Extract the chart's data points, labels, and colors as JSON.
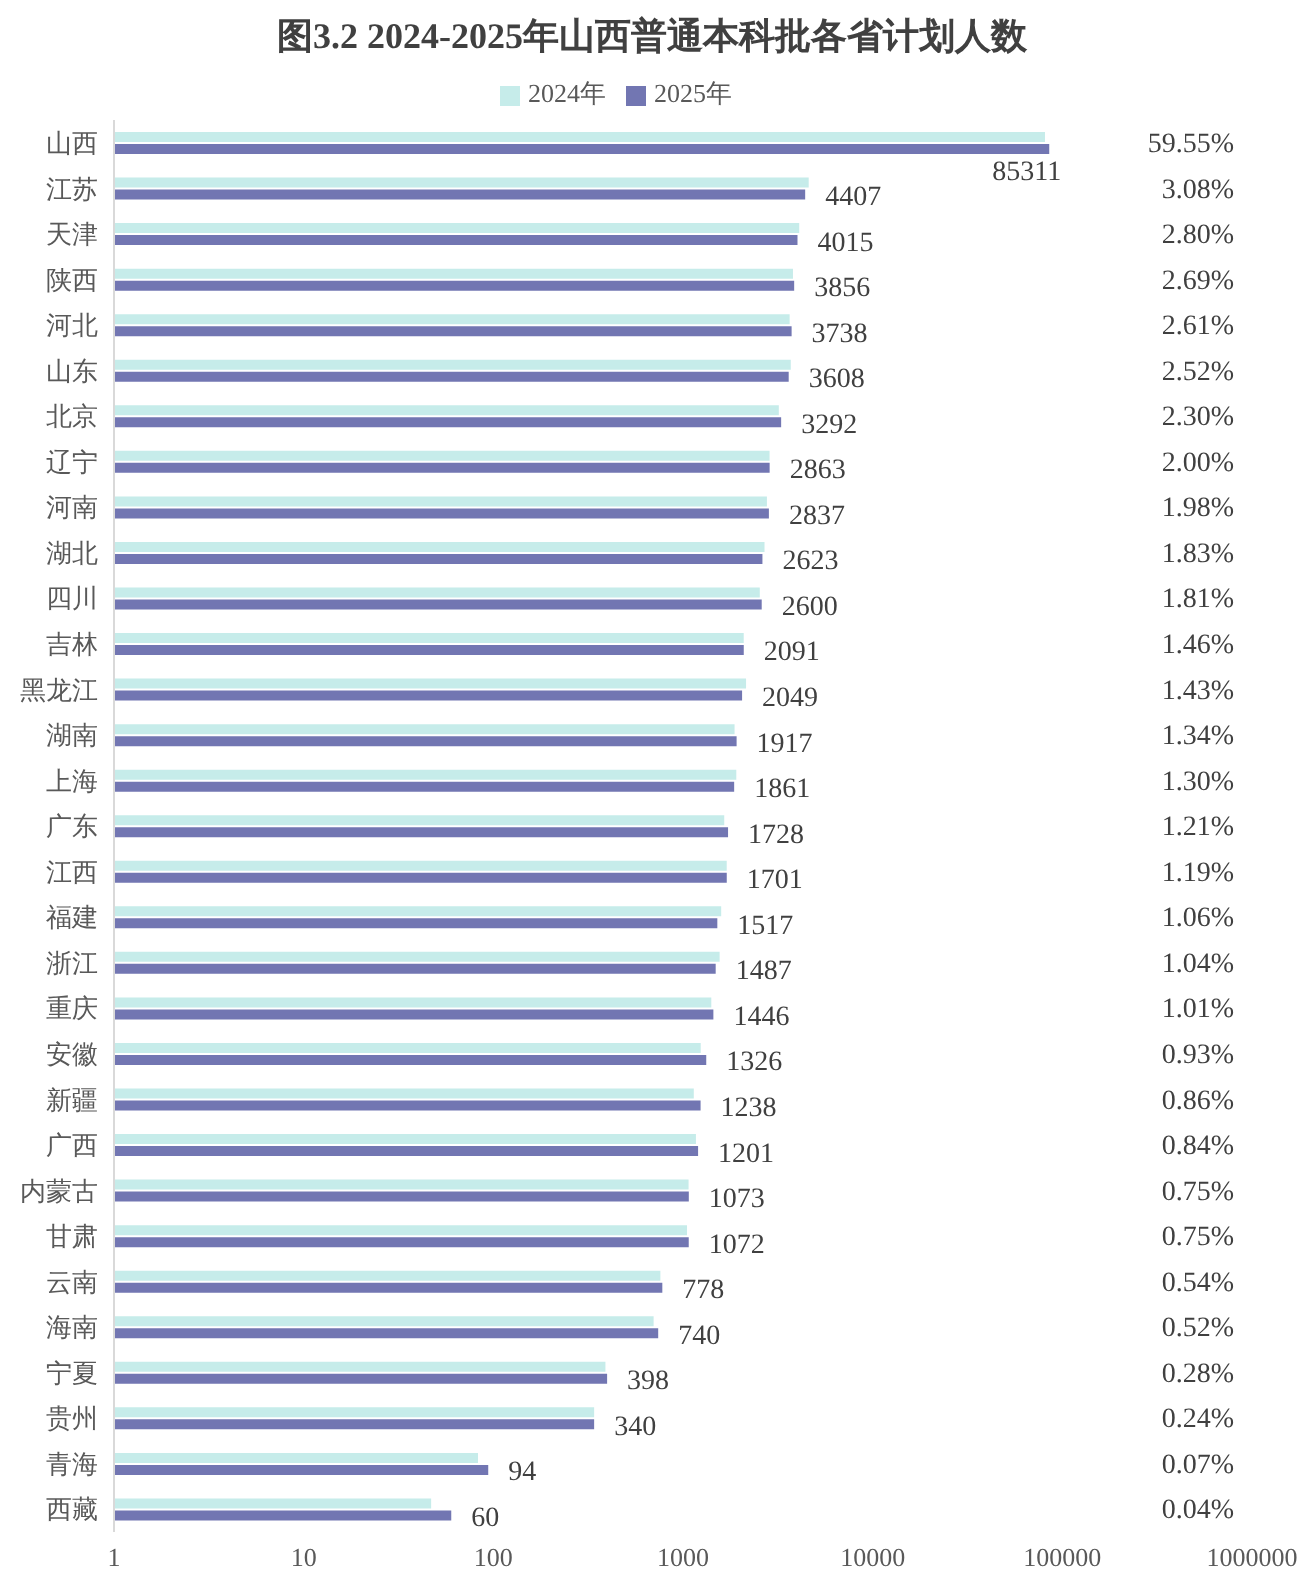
{
  "chart_data": {
    "type": "bar",
    "orientation": "horizontal",
    "title": "图3.2 2024-2025年山西普通本科批各省计划人数",
    "categories": [
      "山西",
      "江苏",
      "天津",
      "陕西",
      "河北",
      "山东",
      "北京",
      "辽宁",
      "河南",
      "湖北",
      "四川",
      "吉林",
      "黑龙江",
      "湖南",
      "上海",
      "广东",
      "江西",
      "福建",
      "浙江",
      "重庆",
      "安徽",
      "新疆",
      "广西",
      "内蒙古",
      "甘肃",
      "云南",
      "海南",
      "宁夏",
      "贵州",
      "青海",
      "西藏"
    ],
    "series": [
      {
        "name": "2024年",
        "color": "#c6ecea",
        "values": [
          81000,
          4600,
          4100,
          3800,
          3650,
          3700,
          3200,
          2860,
          2770,
          2690,
          2540,
          2090,
          2150,
          1870,
          1910,
          1650,
          1700,
          1590,
          1560,
          1410,
          1240,
          1140,
          1170,
          1070,
          1050,
          760,
          700,
          390,
          340,
          83,
          47
        ]
      },
      {
        "name": "2025年",
        "color": "#7276b2",
        "values": [
          85311,
          4407,
          4015,
          3856,
          3738,
          3608,
          3292,
          2863,
          2837,
          2623,
          2600,
          2091,
          2049,
          1917,
          1861,
          1728,
          1701,
          1517,
          1487,
          1446,
          1326,
          1238,
          1201,
          1073,
          1072,
          778,
          740,
          398,
          340,
          94,
          60
        ],
        "value_labels": [
          "85311",
          "4407",
          "4015",
          "3856",
          "3738",
          "3608",
          "3292",
          "2863",
          "2837",
          "2623",
          "2600",
          "2091",
          "2049",
          "1917",
          "1861",
          "1728",
          "1701",
          "1517",
          "1487",
          "1446",
          "1326",
          "1238",
          "1201",
          "1073",
          "1072",
          "778",
          "740",
          "398",
          "340",
          "94",
          "60"
        ]
      }
    ],
    "log": "x",
    "xlim": [
      1,
      1000000
    ],
    "xticks": [
      1,
      10,
      100,
      1000,
      10000,
      100000,
      1000000
    ],
    "legend": "top",
    "annotations": [
      "59.55%",
      "3.08%",
      "2.80%",
      "2.69%",
      "2.61%",
      "2.52%",
      "2.30%",
      "2.00%",
      "1.98%",
      "1.83%",
      "1.81%",
      "1.46%",
      "1.43%",
      "1.34%",
      "1.30%",
      "1.21%",
      "1.19%",
      "1.06%",
      "1.04%",
      "1.01%",
      "0.93%",
      "0.86%",
      "0.84%",
      "0.75%",
      "0.75%",
      "0.54%",
      "0.52%",
      "0.28%",
      "0.24%",
      "0.07%",
      "0.04%"
    ]
  }
}
